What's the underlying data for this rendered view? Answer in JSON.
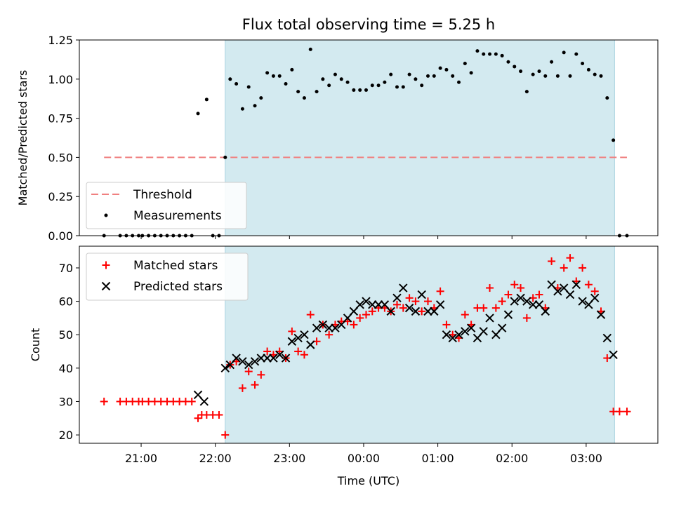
{
  "chart_data": [
    {
      "type": "scatter",
      "title": "Flux total observing time = 5.25 h",
      "xlabel": "",
      "ylabel": "Matched/Predicted stars",
      "ylim": [
        0,
        1.25
      ],
      "yticks": [
        "0.00",
        "0.25",
        "0.50",
        "0.75",
        "1.00",
        "1.25"
      ],
      "x_is_time": true,
      "xlim": [
        "20:10",
        "03:58"
      ],
      "xticks": [
        "21:00",
        "22:00",
        "23:00",
        "00:00",
        "01:00",
        "02:00",
        "03:00"
      ],
      "observing_window": [
        "22:08",
        "03:23"
      ],
      "observing_window_color": "#d3eaf0",
      "threshold": {
        "name": "Threshold",
        "value": 0.5,
        "x_range": [
          "20:30",
          "03:33"
        ],
        "color": "#f08080"
      },
      "legend": {
        "position": "lower-left",
        "entries": [
          "Threshold",
          "Measurements"
        ]
      },
      "series": [
        {
          "name": "Measurements",
          "marker": "dot",
          "color": "#000000",
          "x": [
            "20:30",
            "20:43",
            "20:48",
            "20:53",
            "20:58",
            "21:01",
            "21:06",
            "21:11",
            "21:16",
            "21:21",
            "21:26",
            "21:31",
            "21:36",
            "21:41",
            "21:46",
            "21:53",
            "21:58",
            "22:03",
            "22:08",
            "22:12",
            "22:17",
            "22:22",
            "22:27",
            "22:32",
            "22:37",
            "22:42",
            "22:47",
            "22:52",
            "22:57",
            "23:02",
            "23:07",
            "23:12",
            "23:17",
            "23:22",
            "23:27",
            "23:32",
            "23:37",
            "23:42",
            "23:47",
            "23:52",
            "23:57",
            "00:02",
            "00:07",
            "00:12",
            "00:17",
            "00:22",
            "00:27",
            "00:32",
            "00:37",
            "00:42",
            "00:47",
            "00:52",
            "00:57",
            "01:02",
            "01:07",
            "01:12",
            "01:17",
            "01:22",
            "01:27",
            "01:32",
            "01:37",
            "01:42",
            "01:47",
            "01:52",
            "01:57",
            "02:02",
            "02:07",
            "02:12",
            "02:17",
            "02:22",
            "02:27",
            "02:32",
            "02:37",
            "02:42",
            "02:47",
            "02:52",
            "02:57",
            "03:02",
            "03:07",
            "03:12",
            "03:17",
            "03:22",
            "03:27",
            "03:33"
          ],
          "y": [
            0.0,
            0.0,
            0.0,
            0.0,
            0.0,
            0.0,
            0.0,
            0.0,
            0.0,
            0.0,
            0.0,
            0.0,
            0.0,
            0.0,
            0.78,
            0.87,
            0.0,
            0.0,
            0.5,
            1.0,
            0.97,
            0.81,
            0.95,
            0.83,
            0.88,
            1.04,
            1.02,
            1.02,
            0.97,
            1.06,
            0.92,
            0.88,
            1.19,
            0.92,
            1.0,
            0.96,
            1.03,
            1.0,
            0.98,
            0.93,
            0.93,
            0.93,
            0.96,
            0.96,
            0.98,
            1.03,
            0.95,
            0.95,
            1.03,
            1.0,
            0.96,
            1.02,
            1.02,
            1.07,
            1.06,
            1.02,
            0.98,
            1.1,
            1.04,
            1.18,
            1.16,
            1.16,
            1.16,
            1.15,
            1.11,
            1.08,
            1.05,
            0.92,
            1.03,
            1.05,
            1.02,
            1.11,
            1.02,
            1.17,
            1.02,
            1.16,
            1.1,
            1.06,
            1.03,
            1.02,
            0.88,
            0.61,
            0.0,
            0.0
          ]
        }
      ]
    },
    {
      "type": "scatter",
      "title": "",
      "xlabel": "Time (UTC)",
      "ylabel": "Count",
      "ylim": [
        17.5,
        76.5
      ],
      "yticks": [
        "20",
        "30",
        "40",
        "50",
        "60",
        "70"
      ],
      "x_is_time": true,
      "xlim": [
        "20:10",
        "03:58"
      ],
      "xticks": [
        "21:00",
        "22:00",
        "23:00",
        "00:00",
        "01:00",
        "02:00",
        "03:00"
      ],
      "observing_window": [
        "22:08",
        "03:23"
      ],
      "observing_window_color": "#d3eaf0",
      "legend": {
        "position": "top-left",
        "entries": [
          "Matched stars",
          "Predicted stars"
        ]
      },
      "series": [
        {
          "name": "Matched stars",
          "marker": "plus",
          "color": "#ff0000",
          "x": [
            "20:30",
            "20:43",
            "20:48",
            "20:53",
            "20:58",
            "21:01",
            "21:06",
            "21:11",
            "21:16",
            "21:21",
            "21:26",
            "21:31",
            "21:36",
            "21:41",
            "21:46",
            "21:49",
            "21:53",
            "21:58",
            "22:03",
            "22:08",
            "22:12",
            "22:17",
            "22:22",
            "22:27",
            "22:32",
            "22:37",
            "22:42",
            "22:47",
            "22:52",
            "22:57",
            "23:02",
            "23:07",
            "23:12",
            "23:17",
            "23:22",
            "23:27",
            "23:32",
            "23:37",
            "23:42",
            "23:47",
            "23:52",
            "23:57",
            "00:02",
            "00:07",
            "00:12",
            "00:17",
            "00:22",
            "00:27",
            "00:32",
            "00:37",
            "00:42",
            "00:47",
            "00:52",
            "00:57",
            "01:02",
            "01:07",
            "01:12",
            "01:17",
            "01:22",
            "01:27",
            "01:32",
            "01:37",
            "01:42",
            "01:47",
            "01:52",
            "01:57",
            "02:02",
            "02:07",
            "02:12",
            "02:17",
            "02:22",
            "02:27",
            "02:32",
            "02:37",
            "02:42",
            "02:47",
            "02:52",
            "02:57",
            "03:02",
            "03:07",
            "03:12",
            "03:17",
            "03:22",
            "03:27",
            "03:33"
          ],
          "y": [
            30,
            30,
            30,
            30,
            30,
            30,
            30,
            30,
            30,
            30,
            30,
            30,
            30,
            30,
            25,
            26,
            26,
            26,
            26,
            20,
            41,
            42,
            34,
            39,
            35,
            38,
            45,
            44,
            45,
            43,
            51,
            45,
            44,
            56,
            48,
            53,
            50,
            53,
            54,
            54,
            53,
            55,
            56,
            57,
            58,
            58,
            57,
            59,
            58,
            61,
            60,
            57,
            60,
            58,
            63,
            53,
            50,
            49,
            56,
            53,
            58,
            58,
            64,
            58,
            60,
            62,
            65,
            64,
            55,
            61,
            62,
            58,
            72,
            64,
            70,
            73,
            66,
            70,
            65,
            63,
            57,
            43,
            27,
            27,
            27
          ]
        },
        {
          "name": "Predicted stars",
          "marker": "x",
          "color": "#000000",
          "x": [
            "21:46",
            "21:51",
            "22:08",
            "22:12",
            "22:17",
            "22:22",
            "22:27",
            "22:32",
            "22:37",
            "22:42",
            "22:47",
            "22:52",
            "22:57",
            "23:02",
            "23:07",
            "23:12",
            "23:17",
            "23:22",
            "23:27",
            "23:32",
            "23:37",
            "23:42",
            "23:47",
            "23:52",
            "23:57",
            "00:02",
            "00:07",
            "00:12",
            "00:17",
            "00:22",
            "00:27",
            "00:32",
            "00:37",
            "00:42",
            "00:47",
            "00:52",
            "00:57",
            "01:02",
            "01:07",
            "01:12",
            "01:17",
            "01:22",
            "01:27",
            "01:32",
            "01:37",
            "01:42",
            "01:47",
            "01:52",
            "01:57",
            "02:02",
            "02:07",
            "02:12",
            "02:17",
            "02:22",
            "02:27",
            "02:32",
            "02:37",
            "02:42",
            "02:47",
            "02:52",
            "02:57",
            "03:02",
            "03:07",
            "03:12",
            "03:17",
            "03:22"
          ],
          "y": [
            32,
            30,
            40,
            41,
            43,
            42,
            41,
            42,
            43,
            43,
            43,
            44,
            43,
            48,
            49,
            50,
            47,
            52,
            53,
            52,
            52,
            53,
            55,
            57,
            59,
            60,
            59,
            59,
            59,
            57,
            61,
            64,
            58,
            57,
            62,
            57,
            57,
            59,
            50,
            49,
            50,
            51,
            52,
            49,
            51,
            55,
            50,
            52,
            56,
            60,
            61,
            60,
            59,
            59,
            57,
            65,
            63,
            64,
            62,
            65,
            60,
            59,
            61,
            56,
            49,
            44
          ]
        }
      ]
    }
  ]
}
